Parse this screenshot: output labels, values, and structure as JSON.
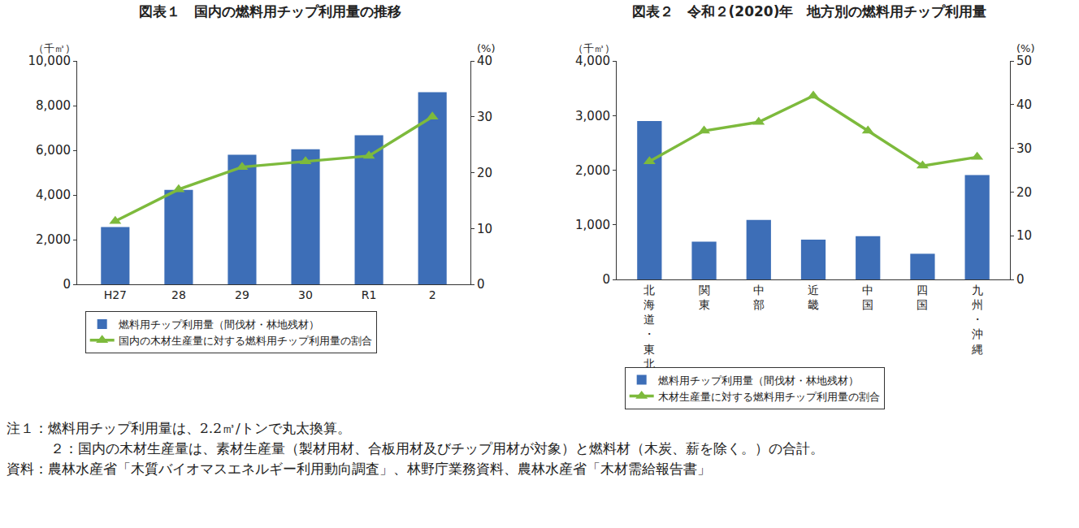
{
  "chart_data": [
    {
      "type": "bar",
      "title": "図表１　国内の燃料用チップ利用量の推移",
      "y_label": "（千㎥）",
      "y2_label": "(%)",
      "categories": [
        "H27",
        "28",
        "29",
        "30",
        "R1",
        "2"
      ],
      "series": [
        {
          "name": "燃料用チップ利用量（間伐材・林地残材）",
          "type": "bar",
          "color": "#3d6eb7",
          "values": [
            2560,
            4230,
            5800,
            6050,
            6670,
            8600
          ]
        },
        {
          "name": "国内の木材生産量に対する燃料用チップ利用量の割合",
          "type": "line",
          "axis": "y2",
          "color": "#7dba3c",
          "marker": "triangle-up",
          "values": [
            11.3,
            17,
            21,
            22,
            23,
            30
          ]
        }
      ],
      "ylim": [
        0,
        10000
      ],
      "yticks": [
        0,
        {
          "value": 2000,
          "label": "2,000"
        },
        {
          "value": 4000,
          "label": "4,000"
        },
        {
          "value": 6000,
          "label": "6,000"
        },
        {
          "value": 8000,
          "label": "8,000"
        },
        {
          "value": 10000,
          "label": "10,000"
        }
      ],
      "y2lim": [
        0,
        40
      ],
      "y2ticks": [
        0,
        10,
        20,
        30,
        40
      ],
      "grid": false,
      "legend": "bottom"
    },
    {
      "type": "bar",
      "title": "図表２　令和２(2020)年　地方別の燃料用チップ利用量",
      "y_label": "（千㎥）",
      "y2_label": "(%)",
      "categories": [
        "北海道・東北",
        "関東",
        "中部",
        "近畿",
        "中国",
        "四国",
        "九州・沖縄"
      ],
      "series": [
        {
          "name": "燃料用チップ利用量（間伐材・林地残材）",
          "type": "bar",
          "color": "#3d6eb7",
          "values": [
            2900,
            690,
            1090,
            730,
            790,
            470,
            1910
          ]
        },
        {
          "name": "木材生産量に対する燃料用チップ利用量の割合",
          "type": "line",
          "axis": "y2",
          "color": "#7dba3c",
          "marker": "triangle-up",
          "values": [
            27,
            34,
            36,
            42,
            34,
            26,
            28
          ]
        }
      ],
      "ylim": [
        0,
        4000
      ],
      "yticks": [
        0,
        {
          "value": 1000,
          "label": "1,000"
        },
        {
          "value": 2000,
          "label": "2,000"
        },
        {
          "value": 3000,
          "label": "3,000"
        },
        {
          "value": 4000,
          "label": "4,000"
        }
      ],
      "y2lim": [
        0,
        50
      ],
      "y2ticks": [
        0,
        10,
        20,
        30,
        40,
        50
      ],
      "grid": false,
      "legend": "bottom"
    }
  ],
  "notes": [
    "注１：燃料用チップ利用量は、2.2㎥/トンで丸太換算。",
    "２：国内の木材生産量は、素材生産量（製材用材、合板用材及びチップ用材が対象）と燃料材（木炭、薪を除く。）の合計。",
    "資料：農林水産省「木質バイオマスエネルギー利用動向調査」、林野庁業務資料、農林水産省「木材需給報告書」"
  ]
}
